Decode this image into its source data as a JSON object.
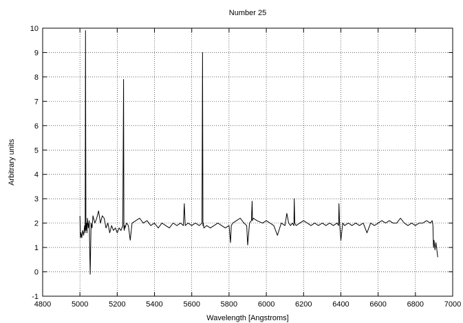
{
  "chart_data": {
    "type": "line",
    "title": "Number 25",
    "xlabel": "Wavelength [Angstroms]",
    "ylabel": "Arbitrary units",
    "xlim": [
      4800,
      7000
    ],
    "ylim": [
      -1,
      10
    ],
    "xticks": [
      4800,
      5000,
      5200,
      5400,
      5600,
      5800,
      6000,
      6200,
      6400,
      6600,
      6800,
      7000
    ],
    "yticks": [
      -1,
      0,
      1,
      2,
      3,
      4,
      5,
      6,
      7,
      8,
      9,
      10
    ],
    "grid": true,
    "legend": "none",
    "line_color": "#000000",
    "series": [
      {
        "name": "",
        "x": [
          5000,
          5003,
          5006,
          5010,
          5015,
          5020,
          5025,
          5028,
          5030,
          5032,
          5035,
          5038,
          5040,
          5045,
          5050,
          5055,
          5060,
          5065,
          5070,
          5080,
          5090,
          5100,
          5110,
          5120,
          5130,
          5140,
          5150,
          5160,
          5170,
          5180,
          5190,
          5200,
          5210,
          5220,
          5230,
          5234,
          5236,
          5238,
          5240,
          5242,
          5250,
          5260,
          5270,
          5280,
          5300,
          5320,
          5340,
          5360,
          5380,
          5400,
          5420,
          5440,
          5460,
          5480,
          5500,
          5520,
          5540,
          5555,
          5560,
          5565,
          5580,
          5600,
          5620,
          5640,
          5655,
          5658,
          5660,
          5662,
          5665,
          5680,
          5700,
          5720,
          5740,
          5760,
          5780,
          5800,
          5808,
          5812,
          5820,
          5840,
          5860,
          5880,
          5895,
          5900,
          5910,
          5920,
          5924,
          5926,
          5930,
          5950,
          5980,
          6000,
          6020,
          6040,
          6060,
          6080,
          6100,
          6110,
          6120,
          6130,
          6140,
          6148,
          6150,
          6153,
          6160,
          6180,
          6200,
          6220,
          6240,
          6260,
          6280,
          6300,
          6320,
          6340,
          6360,
          6380,
          6388,
          6390,
          6393,
          6400,
          6410,
          6420,
          6440,
          6460,
          6480,
          6500,
          6520,
          6540,
          6560,
          6580,
          6600,
          6620,
          6640,
          6660,
          6680,
          6700,
          6720,
          6740,
          6760,
          6780,
          6800,
          6820,
          6840,
          6860,
          6880,
          6890,
          6894,
          6897,
          6900,
          6905,
          6910,
          6915,
          6920
        ],
        "y": [
          2.3,
          1.4,
          1.6,
          1.4,
          1.7,
          1.5,
          1.9,
          1.6,
          9.9,
          1.7,
          2.0,
          1.6,
          2.2,
          1.8,
          2.1,
          -0.1,
          2.0,
          1.8,
          2.3,
          2.0,
          2.2,
          2.5,
          2.0,
          2.3,
          2.2,
          1.8,
          2.0,
          1.6,
          1.9,
          1.7,
          1.8,
          1.6,
          1.8,
          1.7,
          1.9,
          7.9,
          1.8,
          1.7,
          1.9,
          1.8,
          2.0,
          1.9,
          1.3,
          2.0,
          2.1,
          2.2,
          2.0,
          2.1,
          1.9,
          2.0,
          1.8,
          2.0,
          1.9,
          1.8,
          2.0,
          1.9,
          2.0,
          1.9,
          2.8,
          1.9,
          2.0,
          1.9,
          2.0,
          1.9,
          2.0,
          9.0,
          1.9,
          2.0,
          1.8,
          1.9,
          1.8,
          1.9,
          2.0,
          1.9,
          1.8,
          1.9,
          1.2,
          1.9,
          2.0,
          2.1,
          2.2,
          2.0,
          1.9,
          1.1,
          2.0,
          2.1,
          2.9,
          2.1,
          2.2,
          2.1,
          2.0,
          2.1,
          2.0,
          1.9,
          1.5,
          2.0,
          1.9,
          2.4,
          2.0,
          1.9,
          2.0,
          1.9,
          3.0,
          2.0,
          1.9,
          2.0,
          2.1,
          2.0,
          1.9,
          2.0,
          1.9,
          2.0,
          1.9,
          2.0,
          1.9,
          2.0,
          1.9,
          2.8,
          2.0,
          1.3,
          2.0,
          1.9,
          2.0,
          1.9,
          2.0,
          1.9,
          2.0,
          1.6,
          2.0,
          1.9,
          2.0,
          2.1,
          2.0,
          2.1,
          2.0,
          2.0,
          2.2,
          2.0,
          1.9,
          2.0,
          1.9,
          2.0,
          2.0,
          2.1,
          2.0,
          2.1,
          1.9,
          1.0,
          1.3,
          0.9,
          1.2,
          0.9,
          0.6
        ]
      }
    ]
  }
}
